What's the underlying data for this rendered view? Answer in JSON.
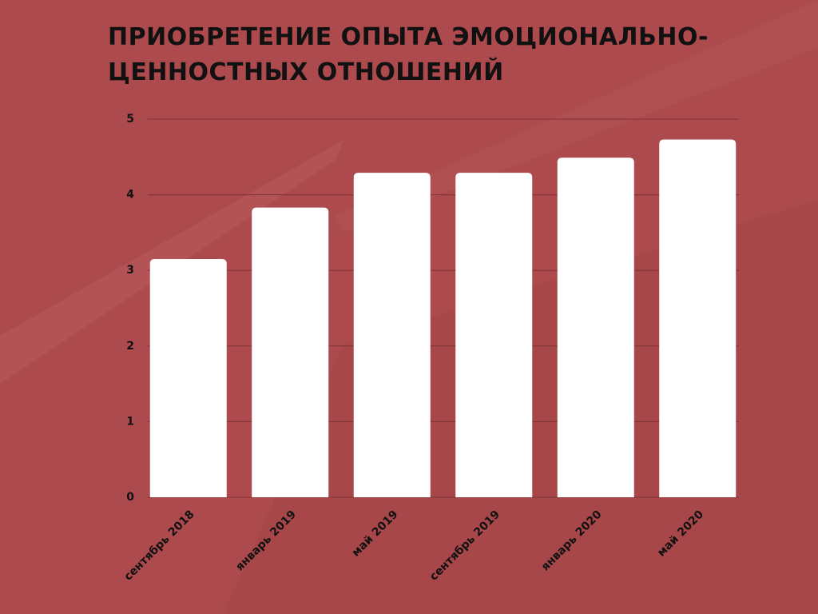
{
  "chart_data": {
    "type": "bar",
    "title": [
      "ПРИОБРЕТЕНИЕ ОПЫТА ЭМОЦИОНАЛЬНО-",
      "ЦЕННОСТНЫХ ОТНОШЕНИЙ"
    ],
    "categories": [
      "сентябрь 2018",
      "январь 2019",
      "май 2019",
      "сентябрь 2019",
      "январь 2020",
      "май 2020"
    ],
    "values": [
      3.15,
      3.83,
      4.29,
      4.29,
      4.49,
      4.73
    ],
    "color": "#ffffff",
    "ylim": [
      0,
      5
    ],
    "yticks": [
      0,
      1,
      2,
      3,
      4,
      5
    ],
    "grid": true
  }
}
